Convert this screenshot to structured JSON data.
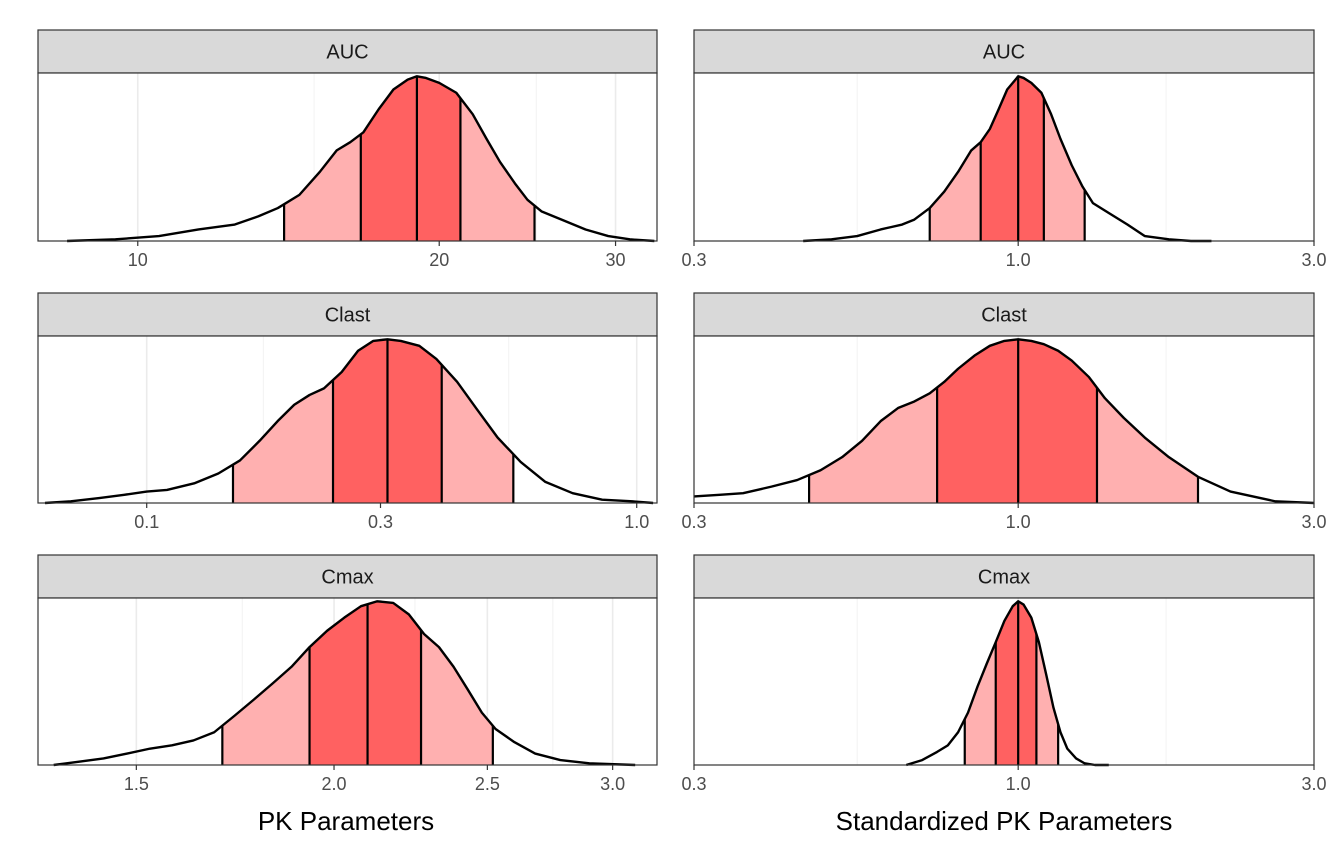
{
  "chart_data": {
    "type": "area",
    "x_titles": [
      "PK Parameters",
      "Standardized PK Parameters"
    ],
    "colors": {
      "outer_band": "#FFB0B0",
      "inner_band": "#FF6161",
      "outline": "#000000",
      "strip_fill": "#D9D9D9",
      "grid_major": "#EBEBEB"
    },
    "grid": true,
    "panels": [
      {
        "strip": "AUC",
        "column": "left",
        "scale": "log",
        "xlim": [
          7.95,
          33.0
        ],
        "ticks": [
          10,
          20,
          30
        ],
        "tick_labels": [
          "10",
          "20",
          "30"
        ],
        "minor_ticks": [
          15,
          25
        ],
        "curve": {
          "x": [
            8.5,
            9.5,
            10.5,
            11.5,
            12.5,
            13.2,
            13.8,
            14.5,
            15.2,
            15.8,
            16.3,
            16.8,
            17.4,
            18.0,
            18.6,
            19.0,
            19.4,
            20.0,
            20.8,
            21.6,
            22.3,
            23.0,
            23.8,
            24.5,
            25.3,
            26.5,
            28.0,
            29.5,
            31.0,
            32.8
          ],
          "y": [
            0.0,
            0.01,
            0.03,
            0.07,
            0.1,
            0.15,
            0.2,
            0.28,
            0.42,
            0.55,
            0.6,
            0.66,
            0.8,
            0.92,
            0.98,
            1.0,
            0.99,
            0.96,
            0.9,
            0.77,
            0.62,
            0.48,
            0.35,
            0.25,
            0.18,
            0.13,
            0.07,
            0.03,
            0.01,
            0.0
          ]
        },
        "quantiles": [
          14.0,
          16.7,
          19.0,
          21.0,
          24.9
        ]
      },
      {
        "strip": "AUC",
        "column": "right",
        "scale": "log",
        "xlim": [
          0.3,
          3.0
        ],
        "ticks": [
          0.3,
          1.0,
          3.0
        ],
        "tick_labels": [
          "0.3",
          "1.0",
          "3.0"
        ],
        "minor_ticks": [
          0.55,
          1.732
        ],
        "curve": {
          "x": [
            0.45,
            0.5,
            0.55,
            0.6,
            0.65,
            0.68,
            0.72,
            0.76,
            0.8,
            0.84,
            0.87,
            0.9,
            0.93,
            0.96,
            0.99,
            1.0,
            1.02,
            1.05,
            1.09,
            1.13,
            1.17,
            1.22,
            1.27,
            1.32,
            1.4,
            1.5,
            1.6,
            1.75,
            1.9,
            2.05
          ],
          "y": [
            0.0,
            0.01,
            0.03,
            0.07,
            0.1,
            0.13,
            0.2,
            0.3,
            0.42,
            0.55,
            0.6,
            0.68,
            0.8,
            0.92,
            0.98,
            1.0,
            0.99,
            0.96,
            0.9,
            0.77,
            0.62,
            0.46,
            0.33,
            0.23,
            0.17,
            0.1,
            0.03,
            0.01,
            0.0,
            0.0
          ]
        },
        "quantiles": [
          0.72,
          0.87,
          1.0,
          1.1,
          1.28
        ]
      },
      {
        "strip": "Clast",
        "column": "left",
        "scale": "log",
        "xlim": [
          0.06,
          1.1
        ],
        "ticks": [
          0.1,
          0.3,
          1.0
        ],
        "tick_labels": [
          "0.1",
          "0.3",
          "1.0"
        ],
        "minor_ticks": [
          0.173,
          0.548
        ],
        "curve": {
          "x": [
            0.062,
            0.07,
            0.08,
            0.09,
            0.1,
            0.11,
            0.125,
            0.14,
            0.155,
            0.17,
            0.185,
            0.2,
            0.215,
            0.23,
            0.25,
            0.27,
            0.29,
            0.31,
            0.33,
            0.36,
            0.39,
            0.43,
            0.47,
            0.52,
            0.58,
            0.65,
            0.74,
            0.85,
            0.98,
            1.08
          ],
          "y": [
            0.0,
            0.01,
            0.03,
            0.05,
            0.07,
            0.08,
            0.12,
            0.18,
            0.26,
            0.38,
            0.5,
            0.6,
            0.66,
            0.7,
            0.8,
            0.93,
            0.99,
            1.0,
            0.99,
            0.96,
            0.88,
            0.74,
            0.58,
            0.4,
            0.25,
            0.13,
            0.06,
            0.02,
            0.01,
            0.0
          ]
        },
        "quantiles": [
          0.15,
          0.24,
          0.31,
          0.4,
          0.56
        ]
      },
      {
        "strip": "Clast",
        "column": "right",
        "scale": "log",
        "xlim": [
          0.3,
          3.0
        ],
        "ticks": [
          0.3,
          1.0,
          3.0
        ],
        "tick_labels": [
          "0.3",
          "1.0",
          "3.0"
        ],
        "minor_ticks": [
          0.55,
          1.732
        ],
        "curve": {
          "x": [
            0.3,
            0.33,
            0.36,
            0.4,
            0.44,
            0.48,
            0.52,
            0.56,
            0.6,
            0.64,
            0.68,
            0.72,
            0.76,
            0.8,
            0.85,
            0.9,
            0.95,
            1.0,
            1.05,
            1.1,
            1.16,
            1.22,
            1.3,
            1.38,
            1.48,
            1.6,
            1.75,
            1.95,
            2.2,
            2.6,
            3.0
          ],
          "y": [
            0.04,
            0.05,
            0.06,
            0.1,
            0.14,
            0.2,
            0.28,
            0.38,
            0.5,
            0.58,
            0.62,
            0.67,
            0.74,
            0.82,
            0.9,
            0.96,
            0.99,
            1.0,
            0.99,
            0.97,
            0.93,
            0.87,
            0.77,
            0.64,
            0.52,
            0.4,
            0.28,
            0.16,
            0.07,
            0.01,
            0.0
          ]
        },
        "quantiles": [
          0.46,
          0.74,
          1.0,
          1.34,
          1.95
        ]
      },
      {
        "strip": "Cmax",
        "column": "left",
        "scale": "log",
        "xlim": [
          1.3,
          3.2
        ],
        "ticks": [
          1.5,
          2.0,
          2.5,
          3.0
        ],
        "tick_labels": [
          "1.5",
          "2.0",
          "2.5",
          "3.0"
        ],
        "minor_ticks": [
          1.75,
          2.25,
          2.75
        ],
        "curve": {
          "x": [
            1.33,
            1.38,
            1.43,
            1.48,
            1.53,
            1.58,
            1.63,
            1.68,
            1.73,
            1.78,
            1.83,
            1.88,
            1.93,
            1.98,
            2.03,
            2.08,
            2.13,
            2.18,
            2.23,
            2.28,
            2.33,
            2.38,
            2.43,
            2.48,
            2.53,
            2.6,
            2.68,
            2.78,
            2.9,
            3.1
          ],
          "y": [
            0.0,
            0.02,
            0.04,
            0.07,
            0.1,
            0.12,
            0.15,
            0.2,
            0.3,
            0.4,
            0.5,
            0.6,
            0.72,
            0.82,
            0.9,
            0.97,
            1.0,
            0.99,
            0.92,
            0.8,
            0.72,
            0.6,
            0.46,
            0.32,
            0.22,
            0.14,
            0.07,
            0.03,
            0.01,
            0.0
          ]
        },
        "quantiles": [
          1.7,
          1.93,
          2.1,
          2.27,
          2.52
        ]
      },
      {
        "strip": "Cmax",
        "column": "right",
        "scale": "log",
        "xlim": [
          0.3,
          3.0
        ],
        "ticks": [
          0.3,
          1.0,
          3.0
        ],
        "tick_labels": [
          "0.3",
          "1.0",
          "3.0"
        ],
        "minor_ticks": [
          0.55,
          1.732
        ],
        "curve": {
          "x": [
            0.66,
            0.7,
            0.74,
            0.77,
            0.8,
            0.83,
            0.86,
            0.89,
            0.92,
            0.95,
            0.98,
            1.0,
            1.02,
            1.05,
            1.08,
            1.11,
            1.14,
            1.17,
            1.2,
            1.24,
            1.28,
            1.33,
            1.4
          ],
          "y": [
            0.0,
            0.03,
            0.08,
            0.12,
            0.2,
            0.32,
            0.48,
            0.62,
            0.75,
            0.88,
            0.97,
            1.0,
            0.98,
            0.9,
            0.75,
            0.55,
            0.35,
            0.2,
            0.1,
            0.04,
            0.01,
            0.0,
            0.0
          ]
        },
        "quantiles": [
          0.82,
          0.92,
          1.0,
          1.07,
          1.16
        ]
      }
    ]
  }
}
